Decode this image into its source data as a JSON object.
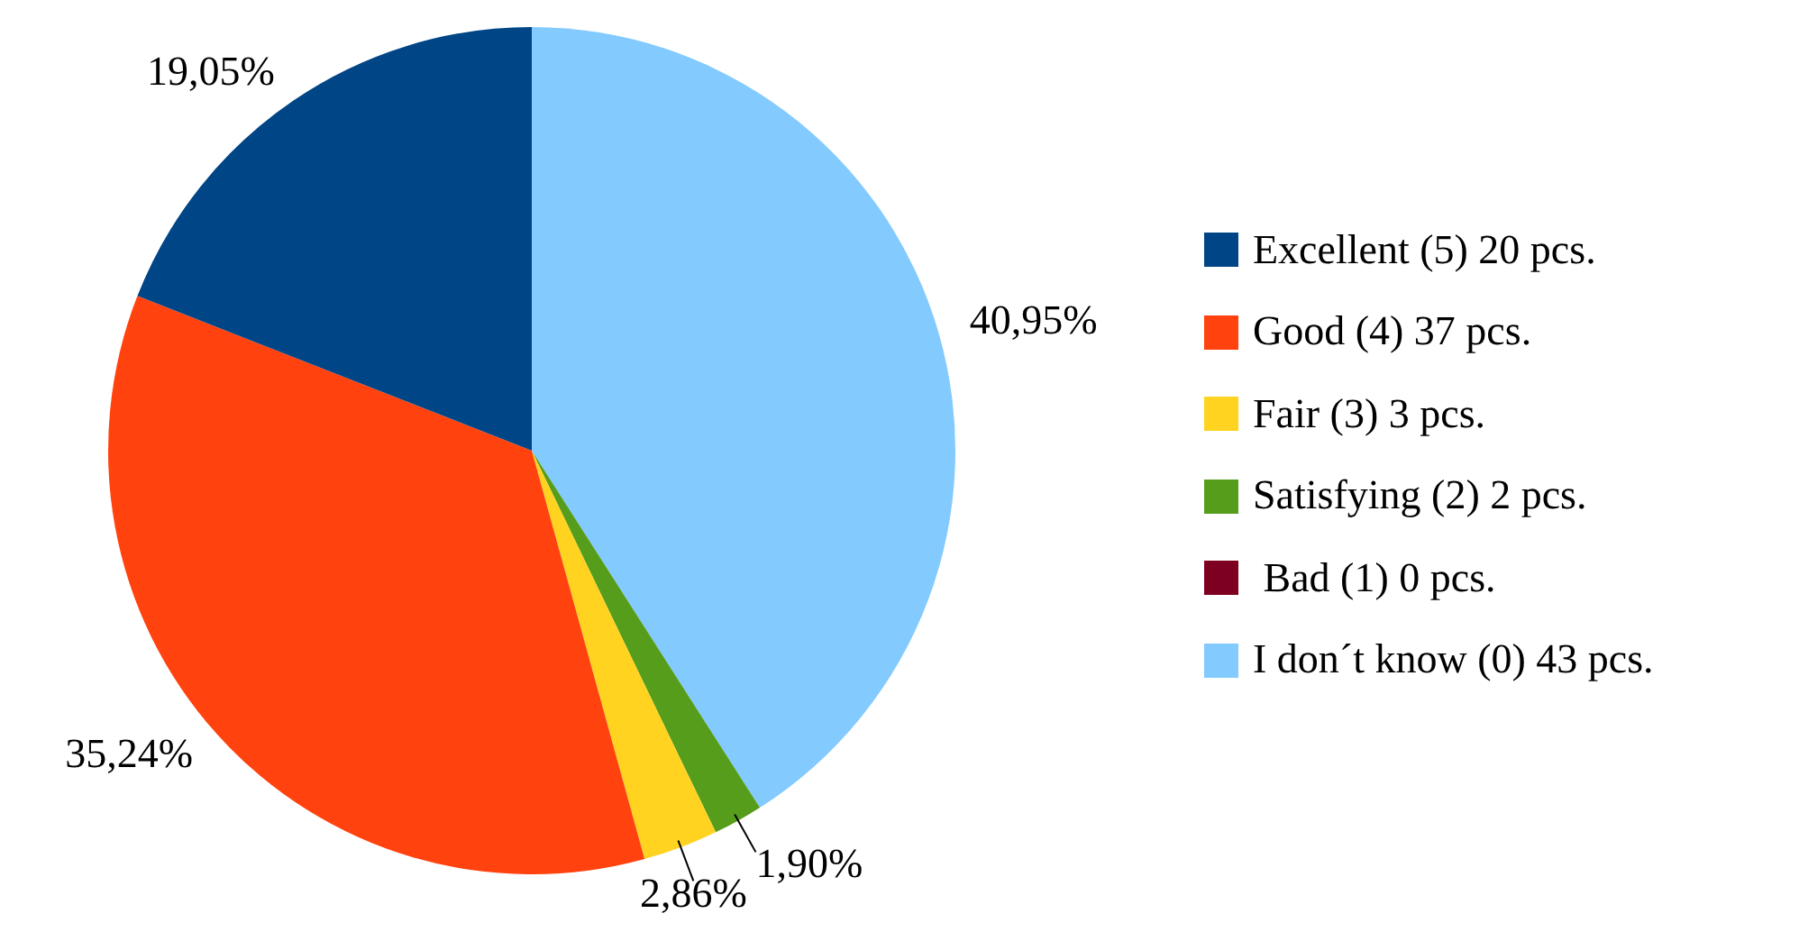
{
  "chart_data": {
    "type": "pie",
    "categories": [
      "Excellent (5) 20 pcs.",
      "Good (4) 37 pcs.",
      "Fair (3) 3 pcs.",
      "Satisfying (2) 2 pcs.",
      " Bad (1) 0 pcs.",
      "I don´t know (0) 43 pcs."
    ],
    "values": [
      19.05,
      35.24,
      2.86,
      1.9,
      0,
      40.95
    ],
    "colors": [
      "#004586",
      "#ff420e",
      "#ffd320",
      "#579d1c",
      "#7e0021",
      "#83caff"
    ],
    "value_labels": [
      "19,05%",
      "35,24%",
      "2,86%",
      "1,90%",
      null,
      "40,95%"
    ],
    "legend": "right"
  }
}
